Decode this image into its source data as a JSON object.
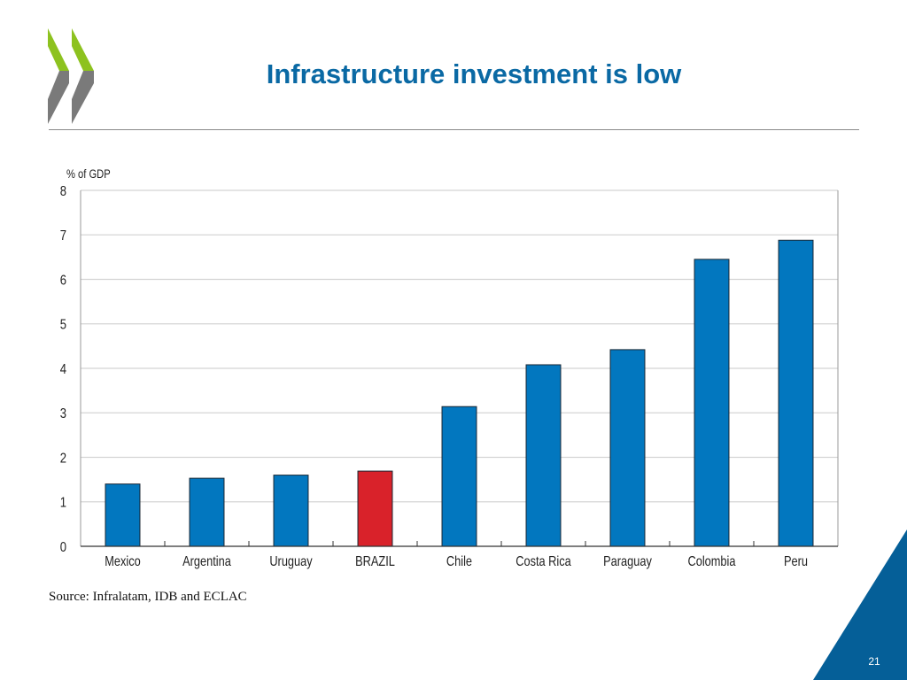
{
  "slide": {
    "title": "Infrastructure investment is low",
    "source": "Source: Infralatam, IDB and ECLAC",
    "page_number": "21",
    "logo": "oecd-chevron-logo",
    "colors": {
      "title": "#0a69a4",
      "bar": "#0277bf",
      "highlight": "#d9222a",
      "corner": "#055f98",
      "logo_green": "#8dc21f",
      "logo_gray": "#7a7a7a"
    }
  },
  "chart_data": {
    "type": "bar",
    "title": "",
    "ylabel": "% of GDP",
    "xlabel": "",
    "ylim": [
      0,
      8
    ],
    "yticks": [
      0,
      1,
      2,
      3,
      4,
      5,
      6,
      7,
      8
    ],
    "grid": true,
    "categories": [
      "Mexico",
      "Argentina",
      "Uruguay",
      "BRAZIL",
      "Chile",
      "Costa Rica",
      "Paraguay",
      "Colombia",
      "Peru"
    ],
    "values": [
      1.4,
      1.53,
      1.6,
      1.69,
      3.14,
      4.08,
      4.42,
      6.45,
      6.88
    ],
    "highlight": "BRAZIL"
  }
}
